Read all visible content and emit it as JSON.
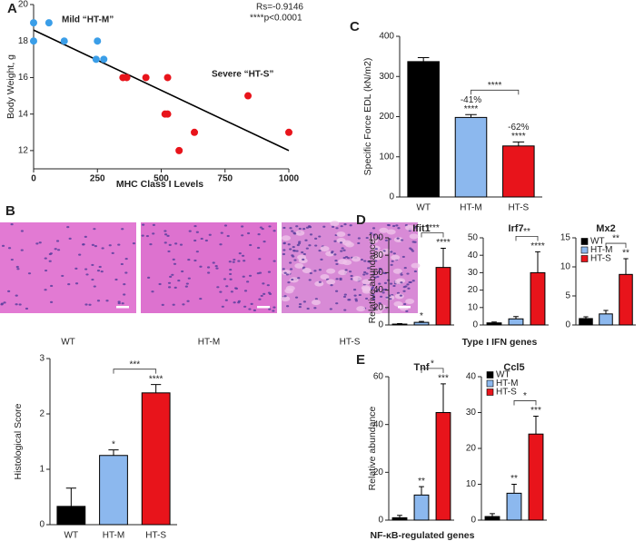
{
  "chart_data": [
    {
      "type": "scatter",
      "panel": "A",
      "xlabel": "MHC Class I Levels",
      "ylabel": "Body Weight, g",
      "xlim": [
        0,
        1000
      ],
      "xticks": [
        0,
        250,
        500,
        750,
        1000
      ],
      "ylim": [
        11,
        20
      ],
      "yticks": [
        12,
        14,
        16,
        18,
        20
      ],
      "series": [
        {
          "color": "#3a9ee8",
          "x": [
            0,
            0,
            60,
            120,
            250,
            245,
            275
          ],
          "y": [
            19,
            18,
            19,
            18,
            18,
            17,
            17
          ]
        },
        {
          "color": "#e8141b",
          "x": [
            350,
            365,
            440,
            525,
            515,
            525,
            630,
            570,
            840,
            1000
          ],
          "y": [
            16,
            16,
            16,
            16,
            14,
            14,
            13,
            12,
            15,
            13
          ]
        }
      ],
      "fit_line": {
        "x": [
          0,
          1000
        ],
        "y": [
          18.6,
          12.0
        ]
      },
      "annotations": [
        {
          "text": "Rs=-0.9146",
          "color": "#333333"
        },
        {
          "text": "****p<0.0001",
          "color": "#333333"
        },
        {
          "text": "Mild “HT-M”",
          "color": "#3a9ee8"
        },
        {
          "text": "Severe “HT-S”",
          "color": "#e8141b"
        }
      ]
    },
    {
      "type": "image",
      "panel": "B",
      "categories": [
        "WT",
        "HT-M",
        "HT-S"
      ]
    },
    {
      "type": "bar",
      "ylabel": "Histological Score",
      "categories": [
        "WT",
        "HT-M",
        "HT-S"
      ],
      "colors": [
        "#000000",
        "#8cb8ee",
        "#e8141b"
      ],
      "values": [
        0.33,
        1.25,
        2.38
      ],
      "errors": [
        0.33,
        0.1,
        0.15
      ],
      "ylim": [
        0,
        3
      ],
      "yticks": [
        0,
        1,
        2,
        3
      ],
      "significance": [
        {
          "bar": 1,
          "label": "*"
        },
        {
          "bar": 2,
          "label": "****"
        }
      ],
      "brackets": [
        {
          "from": 1,
          "to": 2,
          "label": "***"
        }
      ]
    },
    {
      "type": "bar",
      "panel": "C",
      "ylabel": "Specific Force EDL (kN/m2)",
      "categories": [
        "WT",
        "HT-M",
        "HT-S"
      ],
      "colors": [
        "#000000",
        "#8cb8ee",
        "#e8141b"
      ],
      "values": [
        337,
        198,
        127
      ],
      "errors": [
        10,
        7,
        10
      ],
      "ylim": [
        0,
        400
      ],
      "yticks": [
        0,
        100,
        200,
        300,
        400
      ],
      "significance": [
        {
          "bar": 1,
          "label": "-41%"
        },
        {
          "bar": 1,
          "label": "****"
        },
        {
          "bar": 2,
          "label": "-62%"
        },
        {
          "bar": 2,
          "label": "****"
        }
      ],
      "brackets": [
        {
          "from": 1,
          "to": 2,
          "label": "****"
        }
      ]
    },
    {
      "type": "bar",
      "panel": "D",
      "title": "Ifit1",
      "ylabel": "Relative abundance",
      "colors": [
        "#000000",
        "#8cb8ee",
        "#e8141b"
      ],
      "values": [
        1,
        3,
        66
      ],
      "errors": [
        0.5,
        1,
        22
      ],
      "ylim": [
        0,
        100
      ],
      "yticks": [
        0,
        20,
        40,
        60,
        80,
        100
      ],
      "significance": [
        {
          "bar": 1,
          "label": "*"
        },
        {
          "bar": 2,
          "label": "****"
        }
      ],
      "brackets": [
        {
          "from": 1,
          "to": 2,
          "label": "****"
        }
      ]
    },
    {
      "type": "bar",
      "title": "Irf7",
      "xlabel": "Type I IFN genes",
      "colors": [
        "#000000",
        "#8cb8ee",
        "#e8141b"
      ],
      "values": [
        1.2,
        3.5,
        30
      ],
      "errors": [
        0.5,
        1.3,
        12
      ],
      "ylim": [
        0,
        50
      ],
      "yticks": [
        0,
        10,
        20,
        30,
        40,
        50
      ],
      "significance": [
        {
          "bar": 2,
          "label": "****"
        }
      ],
      "brackets": [
        {
          "from": 1,
          "to": 2,
          "label": "**"
        }
      ]
    },
    {
      "type": "bar",
      "title": "Mx2",
      "categories": [
        "WT",
        "HT-M",
        "HT-S"
      ],
      "legend": "upper-left",
      "colors": [
        "#000000",
        "#8cb8ee",
        "#e8141b"
      ],
      "values": [
        1.1,
        1.9,
        8.7
      ],
      "errors": [
        0.3,
        0.6,
        2.7
      ],
      "ylim": [
        0,
        15
      ],
      "yticks": [
        0,
        5,
        10,
        15
      ],
      "significance": [
        {
          "bar": 2,
          "label": "**"
        }
      ],
      "brackets": [
        {
          "from": 1,
          "to": 2,
          "label": "**"
        }
      ]
    },
    {
      "type": "bar",
      "panel": "E",
      "title": "Tnf",
      "ylabel": "Relative abundance",
      "xlabel": "NF-κB-regulated genes",
      "colors": [
        "#000000",
        "#8cb8ee",
        "#e8141b"
      ],
      "values": [
        1,
        10.5,
        45
      ],
      "errors": [
        1,
        3.5,
        12
      ],
      "ylim": [
        0,
        60
      ],
      "yticks": [
        0,
        20,
        40,
        60
      ],
      "significance": [
        {
          "bar": 1,
          "label": "**"
        },
        {
          "bar": 2,
          "label": "***"
        }
      ],
      "brackets": [
        {
          "from": 1,
          "to": 2,
          "label": "*"
        }
      ]
    },
    {
      "type": "bar",
      "title": "Ccl5",
      "categories": [
        "WT",
        "HT-M",
        "HT-S"
      ],
      "legend": "upper-left",
      "colors": [
        "#000000",
        "#8cb8ee",
        "#e8141b"
      ],
      "values": [
        1,
        7.5,
        24
      ],
      "errors": [
        0.8,
        2.5,
        5
      ],
      "ylim": [
        0,
        40
      ],
      "yticks": [
        0,
        10,
        20,
        30,
        40
      ],
      "significance": [
        {
          "bar": 1,
          "label": "**"
        },
        {
          "bar": 2,
          "label": "***"
        }
      ],
      "brackets": [
        {
          "from": 1,
          "to": 2,
          "label": "*"
        }
      ]
    }
  ]
}
